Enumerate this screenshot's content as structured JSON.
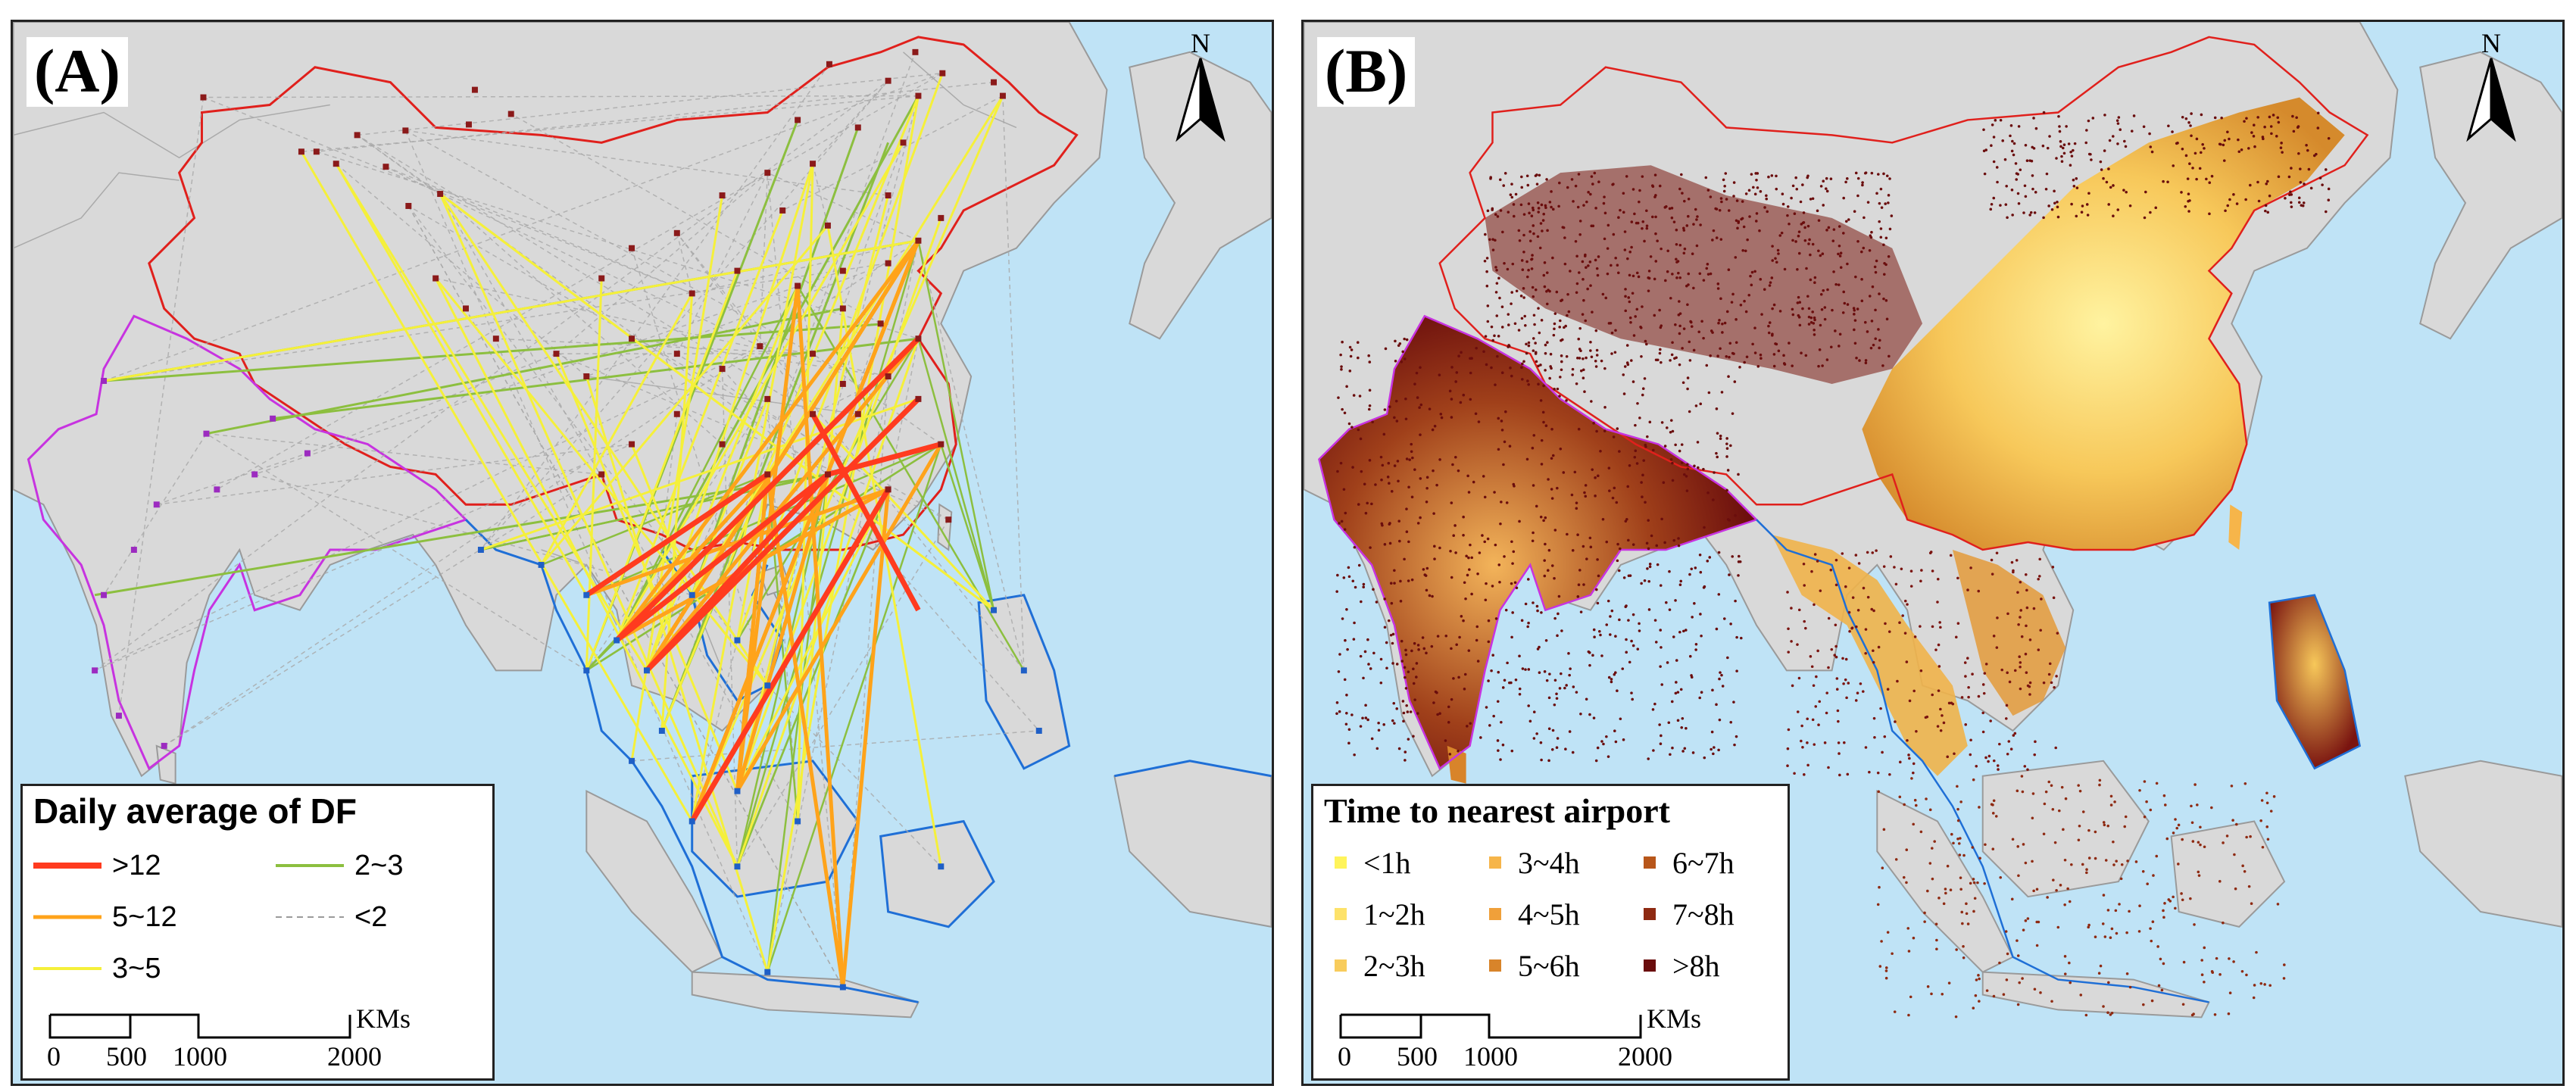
{
  "panels": [
    {
      "label": "(A)",
      "north": "N",
      "legend": {
        "title": "Daily average of DF",
        "items": [
          {
            "label": ">12",
            "color": "#ff3b1f",
            "style": "thick"
          },
          {
            "label": "2~3",
            "color": "#8cbf3f",
            "style": "medium"
          },
          {
            "label": "5~12",
            "color": "#ffa31a",
            "style": "medium"
          },
          {
            "label": "<2",
            "color": "#9a9a9a",
            "style": "dashed"
          },
          {
            "label": "3~5",
            "color": "#f5f03a",
            "style": "medium"
          }
        ]
      },
      "scale": {
        "ticks": [
          "0",
          "500",
          "1000",
          "2000"
        ],
        "unit": "KMs"
      }
    },
    {
      "label": "(B)",
      "north": "N",
      "legend": {
        "title": "Time to nearest airport",
        "items": [
          {
            "label": "<1h",
            "color": "#fff45a"
          },
          {
            "label": "3~4h",
            "color": "#f6b54a"
          },
          {
            "label": "6~7h",
            "color": "#b8561a"
          },
          {
            "label": "1~2h",
            "color": "#fde26a"
          },
          {
            "label": "4~5h",
            "color": "#f0a03a"
          },
          {
            "label": "7~8h",
            "color": "#8e2a12"
          },
          {
            "label": "2~3h",
            "color": "#f8cc5c"
          },
          {
            "label": "5~6h",
            "color": "#d8842a"
          },
          {
            "label": ">8h",
            "color": "#6a0d0d"
          }
        ]
      },
      "scale": {
        "ticks": [
          "0",
          "500",
          "1000",
          "2000"
        ],
        "unit": "KMs"
      }
    }
  ],
  "colors": {
    "sea": "#bfe3f6",
    "land": "#d9d9d9",
    "china_border": "#e0201c",
    "india_border": "#c733e0",
    "sea_border": "#1f6fd6",
    "nodes": "#8b1a1a"
  }
}
